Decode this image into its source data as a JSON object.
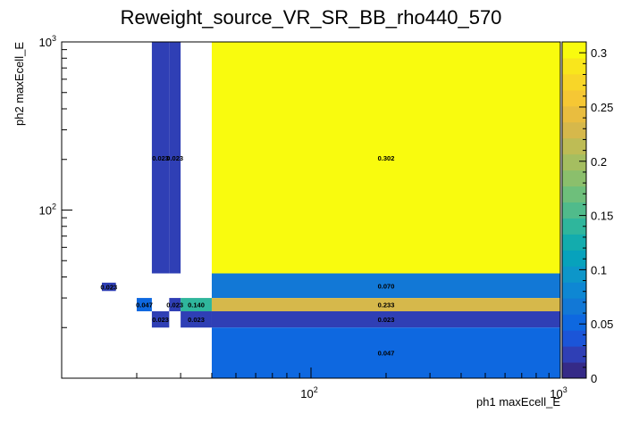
{
  "chart_data": {
    "type": "heatmap",
    "title": "Reweight_source_VR_SR_BB_rho440_570",
    "xlabel": "ph1 maxEcell_E",
    "ylabel": "ph2 maxEcell_E",
    "x_scale": "log",
    "y_scale": "log",
    "xlim": [
      10,
      1000
    ],
    "ylim": [
      10,
      1000
    ],
    "x_tick_labels": [
      "10^2",
      "10^3"
    ],
    "y_tick_labels": [
      "10^2",
      "10^3"
    ],
    "zlim": [
      0,
      0.31
    ],
    "z_tick_labels": [
      "0",
      "0.05",
      "0.1",
      "0.15",
      "0.2",
      "0.25",
      "0.3"
    ],
    "palette": [
      "#352a87",
      "#2f3fb5",
      "#1b55d8",
      "#0e68e0",
      "#1278d6",
      "#0e87d3",
      "#0d96c9",
      "#07a2bc",
      "#13acad",
      "#2fb69c",
      "#50bb8b",
      "#6ebf7b",
      "#8bbf6c",
      "#a5be60",
      "#bebc55",
      "#d6b84b",
      "#e9bd3f",
      "#f6c734",
      "#f8d628",
      "#f9e61c",
      "#f9fb0e"
    ],
    "cells": [
      {
        "x": [
          14.5,
          16.5
        ],
        "y": [
          33,
          37
        ],
        "value": 0.023,
        "label": "0.023"
      },
      {
        "x": [
          23,
          27
        ],
        "y": [
          42,
          1000
        ],
        "value": 0.023,
        "label": "0.023"
      },
      {
        "x": [
          27,
          30
        ],
        "y": [
          42,
          1000
        ],
        "value": 0.023,
        "label": "0.023"
      },
      {
        "x": [
          20,
          23
        ],
        "y": [
          25,
          30
        ],
        "value": 0.047,
        "label": "0.047"
      },
      {
        "x": [
          27,
          30
        ],
        "y": [
          25,
          30
        ],
        "value": 0.023,
        "label": "0.023"
      },
      {
        "x": [
          30,
          40
        ],
        "y": [
          25,
          30
        ],
        "value": 0.14,
        "label": "0.140"
      },
      {
        "x": [
          23,
          27
        ],
        "y": [
          20,
          25
        ],
        "value": 0.023,
        "label": "0.023"
      },
      {
        "x": [
          30,
          40
        ],
        "y": [
          20,
          25
        ],
        "value": 0.023,
        "label": "0.023"
      },
      {
        "x": [
          40,
          1000
        ],
        "y": [
          42,
          1000
        ],
        "value": 0.302,
        "label": "0.302"
      },
      {
        "x": [
          40,
          1000
        ],
        "y": [
          30,
          42
        ],
        "value": 0.07,
        "label": "0.070"
      },
      {
        "x": [
          40,
          1000
        ],
        "y": [
          25,
          30
        ],
        "value": 0.233,
        "label": "0.233"
      },
      {
        "x": [
          40,
          1000
        ],
        "y": [
          20,
          25
        ],
        "value": 0.023,
        "label": "0.023"
      },
      {
        "x": [
          40,
          1000
        ],
        "y": [
          10,
          20
        ],
        "value": 0.047,
        "label": "0.047"
      }
    ]
  }
}
